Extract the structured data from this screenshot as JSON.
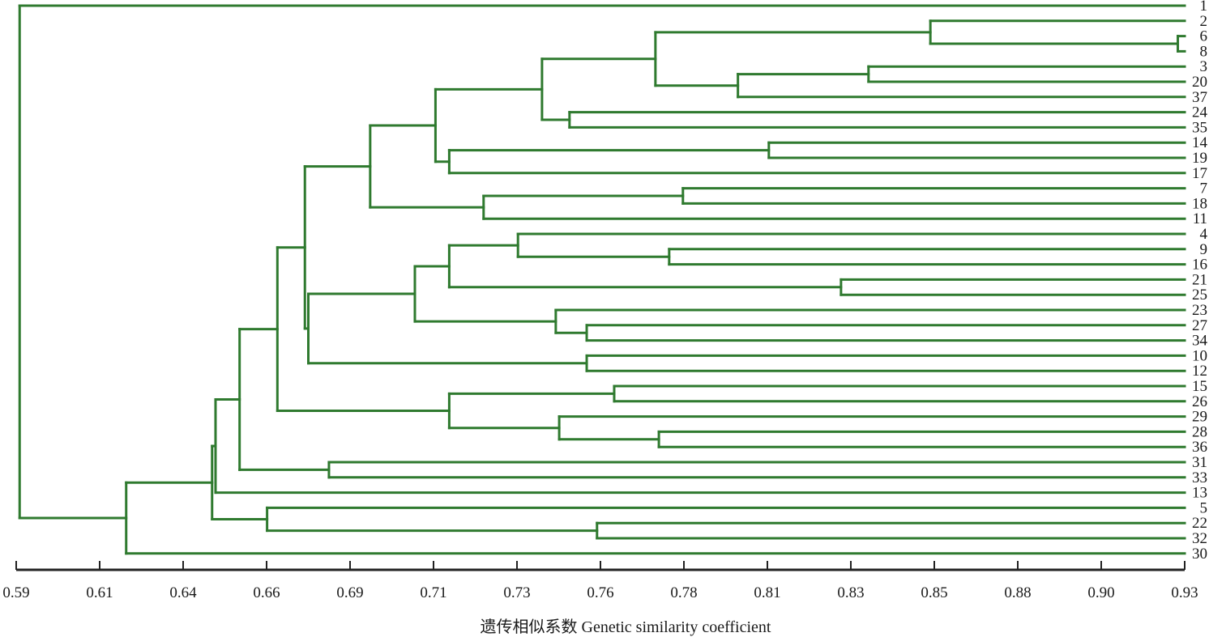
{
  "chart_data": {
    "type": "dendrogram",
    "xlabel": "遗传相似系数 Genetic similarity coefficient",
    "xlim": [
      0.59,
      0.93
    ],
    "ticks": [
      "0.59",
      "0.61",
      "0.64",
      "0.66",
      "0.69",
      "0.71",
      "0.73",
      "0.76",
      "0.78",
      "0.81",
      "0.83",
      "0.85",
      "0.88",
      "0.90",
      "0.93"
    ],
    "leaves": [
      "1",
      "2",
      "6",
      "8",
      "3",
      "20",
      "37",
      "24",
      "35",
      "14",
      "19",
      "17",
      "7",
      "18",
      "11",
      "4",
      "9",
      "16",
      "21",
      "25",
      "23",
      "27",
      "34",
      "10",
      "12",
      "15",
      "26",
      "29",
      "28",
      "36",
      "31",
      "33",
      "13",
      "5",
      "22",
      "32",
      "30"
    ],
    "tree": {
      "h": 0.591,
      "c": [
        {
          "h": 0.93,
          "leaf": "1"
        },
        {
          "h": 0.622,
          "c": [
            {
              "h": 0.647,
              "c": [
                {
                  "h": 0.648,
                  "c": [
                    {
                      "h": 0.655,
                      "c": [
                        {
                          "h": 0.666,
                          "c": [
                            {
                              "h": 0.674,
                              "c": [
                                {
                                  "h": 0.693,
                                  "c": [
                                    {
                                      "h": 0.712,
                                      "c": [
                                        {
                                          "h": 0.743,
                                          "c": [
                                            {
                                              "h": 0.776,
                                              "c": [
                                                {
                                                  "h": 0.856,
                                                  "c": [
                                                    {
                                                      "h": 0.93,
                                                      "leaf": "2"
                                                    },
                                                    {
                                                      "h": 0.928,
                                                      "c": [
                                                        {
                                                          "h": 0.93,
                                                          "leaf": "6"
                                                        },
                                                        {
                                                          "h": 0.93,
                                                          "leaf": "8"
                                                        }
                                                      ]
                                                    }
                                                  ]
                                                },
                                                {
                                                  "h": 0.8,
                                                  "c": [
                                                    {
                                                      "h": 0.838,
                                                      "c": [
                                                        {
                                                          "h": 0.93,
                                                          "leaf": "3"
                                                        },
                                                        {
                                                          "h": 0.93,
                                                          "leaf": "20"
                                                        }
                                                      ]
                                                    },
                                                    {
                                                      "h": 0.93,
                                                      "leaf": "37"
                                                    }
                                                  ]
                                                }
                                              ]
                                            },
                                            {
                                              "h": 0.751,
                                              "c": [
                                                {
                                                  "h": 0.93,
                                                  "leaf": "24"
                                                },
                                                {
                                                  "h": 0.93,
                                                  "leaf": "35"
                                                }
                                              ]
                                            }
                                          ]
                                        },
                                        {
                                          "h": 0.716,
                                          "c": [
                                            {
                                              "h": 0.809,
                                              "c": [
                                                {
                                                  "h": 0.93,
                                                  "leaf": "14"
                                                },
                                                {
                                                  "h": 0.93,
                                                  "leaf": "19"
                                                }
                                              ]
                                            },
                                            {
                                              "h": 0.93,
                                              "leaf": "17"
                                            }
                                          ]
                                        }
                                      ]
                                    },
                                    {
                                      "h": 0.726,
                                      "c": [
                                        {
                                          "h": 0.784,
                                          "c": [
                                            {
                                              "h": 0.93,
                                              "leaf": "7"
                                            },
                                            {
                                              "h": 0.93,
                                              "leaf": "18"
                                            }
                                          ]
                                        },
                                        {
                                          "h": 0.93,
                                          "leaf": "11"
                                        }
                                      ]
                                    }
                                  ]
                                },
                                {
                                  "h": 0.675,
                                  "c": [
                                    {
                                      "h": 0.706,
                                      "c": [
                                        {
                                          "h": 0.716,
                                          "c": [
                                            {
                                              "h": 0.736,
                                              "c": [
                                                {
                                                  "h": 0.93,
                                                  "leaf": "4"
                                                },
                                                {
                                                  "h": 0.78,
                                                  "c": [
                                                    {
                                                      "h": 0.93,
                                                      "leaf": "9"
                                                    },
                                                    {
                                                      "h": 0.93,
                                                      "leaf": "16"
                                                    }
                                                  ]
                                                }
                                              ]
                                            },
                                            {
                                              "h": 0.83,
                                              "c": [
                                                {
                                                  "h": 0.93,
                                                  "leaf": "21"
                                                },
                                                {
                                                  "h": 0.93,
                                                  "leaf": "25"
                                                }
                                              ]
                                            }
                                          ]
                                        },
                                        {
                                          "h": 0.747,
                                          "c": [
                                            {
                                              "h": 0.93,
                                              "leaf": "23"
                                            },
                                            {
                                              "h": 0.756,
                                              "c": [
                                                {
                                                  "h": 0.93,
                                                  "leaf": "27"
                                                },
                                                {
                                                  "h": 0.93,
                                                  "leaf": "34"
                                                }
                                              ]
                                            }
                                          ]
                                        }
                                      ]
                                    },
                                    {
                                      "h": 0.756,
                                      "c": [
                                        {
                                          "h": 0.93,
                                          "leaf": "10"
                                        },
                                        {
                                          "h": 0.93,
                                          "leaf": "12"
                                        }
                                      ]
                                    }
                                  ]
                                }
                              ]
                            },
                            {
                              "h": 0.716,
                              "c": [
                                {
                                  "h": 0.764,
                                  "c": [
                                    {
                                      "h": 0.93,
                                      "leaf": "15"
                                    },
                                    {
                                      "h": 0.93,
                                      "leaf": "26"
                                    }
                                  ]
                                },
                                {
                                  "h": 0.748,
                                  "c": [
                                    {
                                      "h": 0.93,
                                      "leaf": "29"
                                    },
                                    {
                                      "h": 0.777,
                                      "c": [
                                        {
                                          "h": 0.93,
                                          "leaf": "28"
                                        },
                                        {
                                          "h": 0.93,
                                          "leaf": "36"
                                        }
                                      ]
                                    }
                                  ]
                                }
                              ]
                            }
                          ]
                        },
                        {
                          "h": 0.681,
                          "c": [
                            {
                              "h": 0.93,
                              "leaf": "31"
                            },
                            {
                              "h": 0.93,
                              "leaf": "33"
                            }
                          ]
                        }
                      ]
                    },
                    {
                      "h": 0.93,
                      "leaf": "13"
                    }
                  ]
                },
                {
                  "h": 0.663,
                  "c": [
                    {
                      "h": 0.93,
                      "leaf": "5"
                    },
                    {
                      "h": 0.759,
                      "c": [
                        {
                          "h": 0.93,
                          "leaf": "22"
                        },
                        {
                          "h": 0.93,
                          "leaf": "32"
                        }
                      ]
                    }
                  ]
                }
              ]
            },
            {
              "h": 0.93,
              "leaf": "30"
            }
          ]
        }
      ]
    }
  },
  "colors": {
    "branch": "#2f7a2f",
    "axis": "#222222"
  }
}
